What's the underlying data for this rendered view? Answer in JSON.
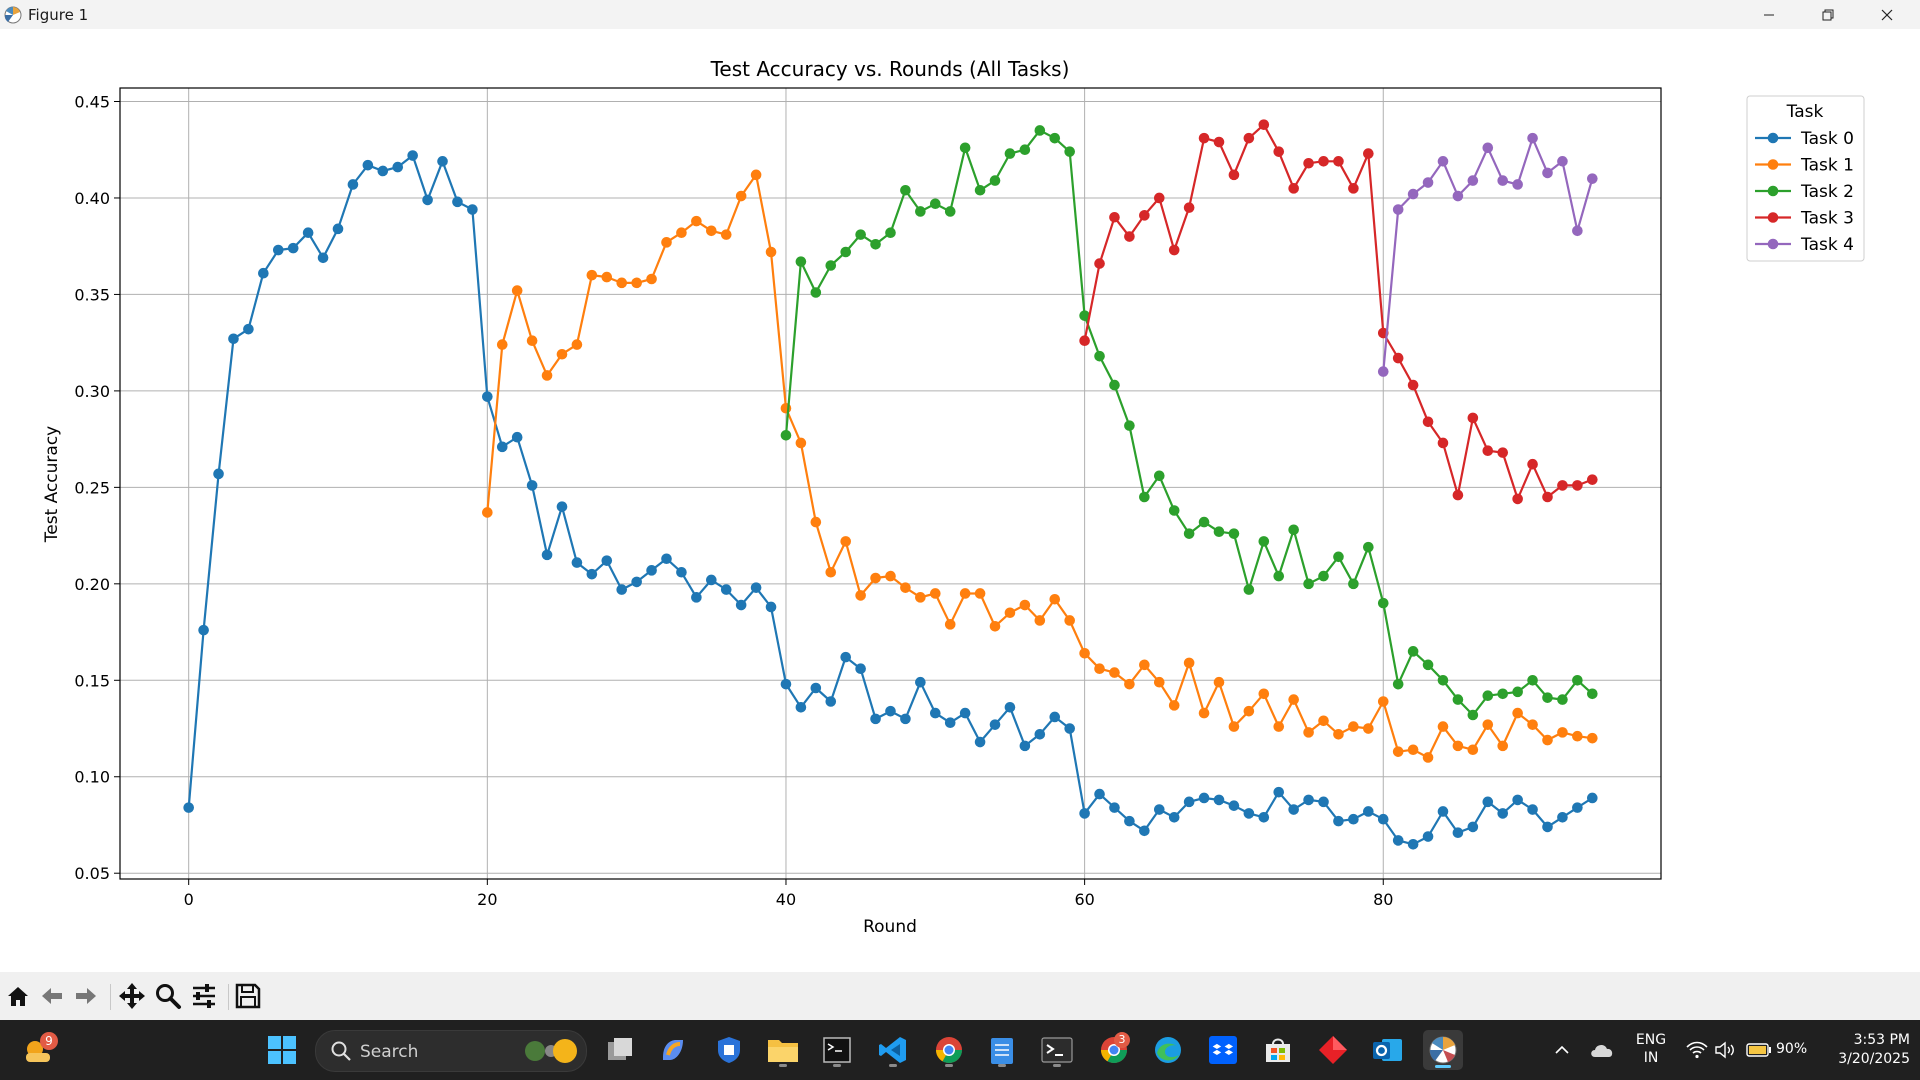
{
  "window": {
    "title": "Figure 1",
    "controls": [
      "minimize-icon",
      "restore-icon",
      "close-icon"
    ]
  },
  "colors": {
    "task0": "#1f77b4",
    "task1": "#ff7f0e",
    "task2": "#2ca02c",
    "task3": "#d62728",
    "task4": "#9467bd"
  },
  "chart_data": {
    "type": "line",
    "title": "Test Accuracy vs. Rounds (All Tasks)",
    "xlabel": "Round",
    "ylabel": "Test Accuracy",
    "xlim": [
      -4.6,
      98.6
    ],
    "ylim": [
      0.047,
      0.457
    ],
    "xticks": [
      "0",
      "20",
      "40",
      "60",
      "80"
    ],
    "yticks": [
      "0.05",
      "0.10",
      "0.15",
      "0.20",
      "0.25",
      "0.30",
      "0.35",
      "0.40",
      "0.45"
    ],
    "grid": true,
    "legend": {
      "title": "Task",
      "placement": "outside-top-right"
    },
    "series": [
      {
        "name": "Task 0",
        "x_start": 0,
        "values": [
          0.084,
          0.176,
          0.257,
          0.327,
          0.332,
          0.361,
          0.373,
          0.374,
          0.382,
          0.369,
          0.384,
          0.407,
          0.417,
          0.414,
          0.416,
          0.422,
          0.399,
          0.419,
          0.398,
          0.394,
          0.297,
          0.271,
          0.276,
          0.251,
          0.215,
          0.24,
          0.211,
          0.205,
          0.212,
          0.197,
          0.201,
          0.207,
          0.213,
          0.206,
          0.193,
          0.202,
          0.197,
          0.189,
          0.198,
          0.188,
          0.148,
          0.136,
          0.146,
          0.139,
          0.162,
          0.156,
          0.13,
          0.134,
          0.13,
          0.149,
          0.133,
          0.128,
          0.133,
          0.118,
          0.127,
          0.136,
          0.116,
          0.122,
          0.131,
          0.125,
          0.081,
          0.091,
          0.084,
          0.077,
          0.072,
          0.083,
          0.079,
          0.087,
          0.089,
          0.088,
          0.085,
          0.081,
          0.079,
          0.092,
          0.083,
          0.088,
          0.087,
          0.077,
          0.078,
          0.082,
          0.078,
          0.067,
          0.065,
          0.069,
          0.082,
          0.071,
          0.074,
          0.087,
          0.081,
          0.088,
          0.083,
          0.074,
          0.079,
          0.084,
          0.089
        ]
      },
      {
        "name": "Task 1",
        "x_start": 20,
        "values": [
          0.237,
          0.324,
          0.352,
          0.326,
          0.308,
          0.319,
          0.324,
          0.36,
          0.359,
          0.356,
          0.356,
          0.358,
          0.377,
          0.382,
          0.388,
          0.383,
          0.381,
          0.401,
          0.412,
          0.372,
          0.291,
          0.273,
          0.232,
          0.206,
          0.222,
          0.194,
          0.203,
          0.204,
          0.198,
          0.193,
          0.195,
          0.179,
          0.195,
          0.195,
          0.178,
          0.185,
          0.189,
          0.181,
          0.192,
          0.181,
          0.164,
          0.156,
          0.154,
          0.148,
          0.158,
          0.149,
          0.137,
          0.159,
          0.133,
          0.149,
          0.126,
          0.134,
          0.143,
          0.126,
          0.14,
          0.123,
          0.129,
          0.122,
          0.126,
          0.125,
          0.139,
          0.113,
          0.114,
          0.11,
          0.126,
          0.116,
          0.114,
          0.127,
          0.116,
          0.133,
          0.127,
          0.119,
          0.123,
          0.121,
          0.12
        ]
      },
      {
        "name": "Task 2",
        "x_start": 40,
        "values": [
          0.277,
          0.367,
          0.351,
          0.365,
          0.372,
          0.381,
          0.376,
          0.382,
          0.404,
          0.393,
          0.397,
          0.393,
          0.426,
          0.404,
          0.409,
          0.423,
          0.425,
          0.435,
          0.431,
          0.424,
          0.339,
          0.318,
          0.303,
          0.282,
          0.245,
          0.256,
          0.238,
          0.226,
          0.232,
          0.227,
          0.226,
          0.197,
          0.222,
          0.204,
          0.228,
          0.2,
          0.204,
          0.214,
          0.2,
          0.219,
          0.19,
          0.148,
          0.165,
          0.158,
          0.15,
          0.14,
          0.132,
          0.142,
          0.143,
          0.144,
          0.15,
          0.141,
          0.14,
          0.15,
          0.143
        ]
      },
      {
        "name": "Task 3",
        "x_start": 60,
        "values": [
          0.326,
          0.366,
          0.39,
          0.38,
          0.391,
          0.4,
          0.373,
          0.395,
          0.431,
          0.429,
          0.412,
          0.431,
          0.438,
          0.424,
          0.405,
          0.418,
          0.419,
          0.419,
          0.405,
          0.423,
          0.33,
          0.317,
          0.303,
          0.284,
          0.273,
          0.246,
          0.286,
          0.269,
          0.268,
          0.244,
          0.262,
          0.245,
          0.251,
          0.251,
          0.254
        ]
      },
      {
        "name": "Task 4",
        "x_start": 80,
        "values": [
          0.31,
          0.394,
          0.402,
          0.408,
          0.419,
          0.401,
          0.409,
          0.426,
          0.409,
          0.407,
          0.431,
          0.413,
          0.419,
          0.383,
          0.41
        ]
      }
    ]
  },
  "toolbar": {
    "buttons": [
      "home-icon",
      "back-icon",
      "forward-icon",
      "pan-icon",
      "zoom-icon",
      "configure-subplots-icon",
      "save-icon"
    ]
  },
  "taskbar": {
    "weather_badge": "9",
    "search_label": "Search",
    "chrome_badge": "3",
    "language": "ENG",
    "region": "IN",
    "battery": "90%",
    "time": "3:53 PM",
    "date": "3/20/2025"
  }
}
